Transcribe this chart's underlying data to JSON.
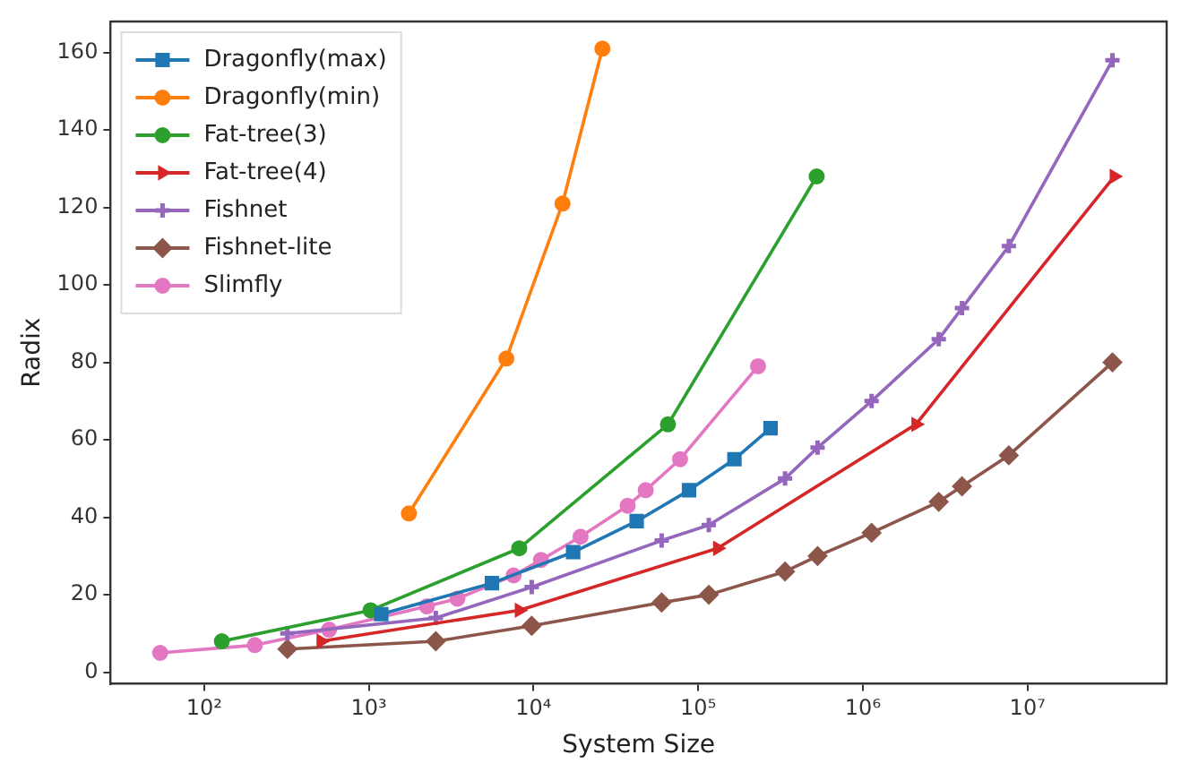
{
  "chart_data": {
    "type": "line",
    "xlabel": "System Size",
    "ylabel": "Radix",
    "log": "x",
    "xlim": [
      27,
      70000000
    ],
    "ylim": [
      -3,
      168
    ],
    "xticks": [
      {
        "value": 100,
        "label": "10²"
      },
      {
        "value": 1000,
        "label": "10³"
      },
      {
        "value": 10000,
        "label": "10⁴"
      },
      {
        "value": 100000,
        "label": "10⁵"
      },
      {
        "value": 1000000,
        "label": "10⁶"
      },
      {
        "value": 10000000,
        "label": "10⁷"
      }
    ],
    "yticks": [
      0,
      20,
      40,
      60,
      80,
      100,
      120,
      140,
      160
    ],
    "grid": false,
    "legend": "top left",
    "line_style": "solid",
    "series": [
      {
        "name": "Dragonfly(max)",
        "color": "#1f77b4",
        "marker": "square",
        "x": [
          1190,
          5590,
          17400,
          42300,
          88000,
          166000,
          275000
        ],
        "values": [
          15,
          23,
          31,
          39,
          47,
          55,
          63
        ]
      },
      {
        "name": "Dragonfly(min)",
        "color": "#ff7f0e",
        "marker": "circle",
        "x": [
          1750,
          6840,
          15000,
          26200
        ],
        "values": [
          41,
          81,
          121,
          161
        ]
      },
      {
        "name": "Fat-tree(3)",
        "color": "#2ca02c",
        "marker": "circle",
        "x": [
          128,
          1024,
          8192,
          65536,
          524288
        ],
        "values": [
          8,
          16,
          32,
          64,
          128
        ]
      },
      {
        "name": "Fat-tree(4)",
        "color": "#d62728",
        "marker": "triangle",
        "x": [
          512,
          8192,
          131072,
          2100000,
          33600000
        ],
        "values": [
          8,
          16,
          32,
          64,
          128
        ]
      },
      {
        "name": "Fishnet",
        "color": "#9467bd",
        "marker": "cross",
        "x": [
          320,
          2550,
          9750,
          60000,
          116000,
          337000,
          531000,
          1130000,
          2890000,
          4000000,
          7700000,
          32800000
        ],
        "values": [
          10,
          14,
          22,
          34,
          38,
          50,
          58,
          70,
          86,
          94,
          110,
          158
        ]
      },
      {
        "name": "Fishnet-lite",
        "color": "#8c564b",
        "marker": "diamond",
        "x": [
          320,
          2550,
          9750,
          60000,
          116000,
          337000,
          531000,
          1130000,
          2890000,
          4000000,
          7700000,
          32800000
        ],
        "values": [
          6,
          8,
          12,
          18,
          20,
          26,
          30,
          36,
          44,
          48,
          56,
          80
        ]
      },
      {
        "name": "Slimfly",
        "color": "#e377c2",
        "marker": "circle",
        "x": [
          54,
          203,
          573,
          2250,
          3450,
          7570,
          11100,
          19300,
          37300,
          48000,
          77600,
          231000
        ],
        "values": [
          5,
          7,
          11,
          17,
          19,
          25,
          29,
          35,
          43,
          47,
          55,
          79
        ]
      }
    ]
  }
}
